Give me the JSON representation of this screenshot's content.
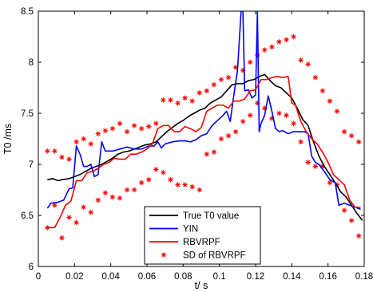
{
  "chart_data": {
    "type": "line",
    "title": "",
    "xlabel": "t/ s",
    "ylabel": "T0 /ms",
    "xlim": [
      0,
      0.18
    ],
    "ylim": [
      6,
      8.5
    ],
    "xticks": [
      "0",
      "0.02",
      "0.04",
      "0.06",
      "0.08",
      "0.1",
      "0.12",
      "0.14",
      "0.16",
      "0.18"
    ],
    "yticks": [
      "6",
      "6.5",
      "7",
      "7.5",
      "8",
      "8.5"
    ],
    "legend_position": "bottom-center",
    "series": [
      {
        "name": "True T0 value",
        "color": "#000000",
        "style": "line",
        "x": [
          0.005,
          0.008,
          0.011,
          0.013,
          0.017,
          0.02,
          0.023,
          0.026,
          0.029,
          0.032,
          0.035,
          0.038,
          0.041,
          0.044,
          0.047,
          0.05,
          0.053,
          0.056,
          0.059,
          0.062,
          0.065,
          0.068,
          0.071,
          0.074,
          0.077,
          0.08,
          0.083,
          0.086,
          0.089,
          0.092,
          0.095,
          0.098,
          0.101,
          0.104,
          0.107,
          0.11,
          0.113,
          0.116,
          0.119,
          0.122,
          0.125,
          0.128,
          0.131,
          0.134,
          0.137,
          0.14,
          0.143,
          0.146,
          0.149,
          0.152,
          0.155,
          0.158,
          0.161,
          0.164,
          0.167,
          0.17,
          0.173,
          0.176,
          0.179
        ],
        "y": [
          6.85,
          6.86,
          6.84,
          6.85,
          6.86,
          6.88,
          6.9,
          6.93,
          6.96,
          6.98,
          7.0,
          7.03,
          7.06,
          7.1,
          7.12,
          7.13,
          7.15,
          7.17,
          7.19,
          7.2,
          7.22,
          7.27,
          7.32,
          7.36,
          7.4,
          7.43,
          7.47,
          7.5,
          7.53,
          7.55,
          7.6,
          7.63,
          7.66,
          7.72,
          7.78,
          7.79,
          7.79,
          7.82,
          7.83,
          7.86,
          7.88,
          7.82,
          7.77,
          7.75,
          7.7,
          7.65,
          7.55,
          7.44,
          7.38,
          7.22,
          7.08,
          6.98,
          6.9,
          6.82,
          6.73,
          6.68,
          6.6,
          6.52,
          6.45
        ]
      },
      {
        "name": "YIN",
        "color": "#0000ff",
        "style": "line",
        "x": [
          0.005,
          0.007,
          0.011,
          0.014,
          0.017,
          0.019,
          0.021,
          0.023,
          0.025,
          0.027,
          0.029,
          0.031,
          0.033,
          0.035,
          0.037,
          0.041,
          0.045,
          0.049,
          0.053,
          0.057,
          0.061,
          0.064,
          0.066,
          0.068,
          0.07,
          0.074,
          0.078,
          0.081,
          0.084,
          0.087,
          0.09,
          0.093,
          0.096,
          0.099,
          0.102,
          0.104,
          0.106,
          0.108,
          0.11,
          0.112,
          0.113,
          0.114,
          0.116,
          0.118,
          0.12,
          0.121,
          0.122,
          0.123,
          0.125,
          0.127,
          0.129,
          0.131,
          0.133,
          0.135,
          0.138,
          0.141,
          0.144,
          0.147,
          0.149,
          0.151,
          0.153,
          0.155,
          0.158,
          0.161,
          0.164,
          0.166,
          0.169,
          0.172,
          0.175,
          0.178
        ],
        "y": [
          6.57,
          6.62,
          6.63,
          6.65,
          6.76,
          6.77,
          7.18,
          7.1,
          6.98,
          6.98,
          7.0,
          6.88,
          6.9,
          7.22,
          7.13,
          7.13,
          7.15,
          7.17,
          7.15,
          7.15,
          7.18,
          7.18,
          7.22,
          7.16,
          7.2,
          7.22,
          7.23,
          7.23,
          7.22,
          7.24,
          7.28,
          7.3,
          7.38,
          7.43,
          7.48,
          7.52,
          7.42,
          7.68,
          7.92,
          8.5,
          8.5,
          7.72,
          7.73,
          7.65,
          7.68,
          8.5,
          7.32,
          7.4,
          7.48,
          7.67,
          7.52,
          7.35,
          7.32,
          7.33,
          7.3,
          7.32,
          7.32,
          7.32,
          7.3,
          7.08,
          7.02,
          7.0,
          6.93,
          6.85,
          6.82,
          6.6,
          6.62,
          6.6,
          6.58,
          6.56
        ]
      },
      {
        "name": "RBVRPF",
        "color": "#ff0000",
        "style": "line",
        "x": [
          0.005,
          0.009,
          0.012,
          0.015,
          0.018,
          0.021,
          0.024,
          0.027,
          0.03,
          0.033,
          0.036,
          0.039,
          0.042,
          0.045,
          0.048,
          0.051,
          0.054,
          0.057,
          0.06,
          0.063,
          0.066,
          0.069,
          0.072,
          0.075,
          0.078,
          0.081,
          0.084,
          0.087,
          0.09,
          0.093,
          0.096,
          0.099,
          0.102,
          0.105,
          0.108,
          0.111,
          0.114,
          0.117,
          0.12,
          0.123,
          0.126,
          0.129,
          0.132,
          0.135,
          0.138,
          0.14,
          0.142,
          0.145,
          0.148,
          0.151,
          0.154,
          0.157,
          0.16,
          0.163,
          0.166,
          0.169,
          0.172,
          0.175,
          0.178
        ],
        "y": [
          6.38,
          6.38,
          6.48,
          6.6,
          6.64,
          6.84,
          6.84,
          6.92,
          6.93,
          6.96,
          7.0,
          7.02,
          7.06,
          7.05,
          7.05,
          7.1,
          7.1,
          7.12,
          7.15,
          7.2,
          7.35,
          7.38,
          7.38,
          7.32,
          7.32,
          7.37,
          7.35,
          7.32,
          7.36,
          7.52,
          7.55,
          7.58,
          7.58,
          7.55,
          7.62,
          7.62,
          7.64,
          7.72,
          7.73,
          7.83,
          7.83,
          7.85,
          7.86,
          7.85,
          7.86,
          7.6,
          7.58,
          7.42,
          7.32,
          7.25,
          7.2,
          7.12,
          7.02,
          6.9,
          6.85,
          6.8,
          6.65,
          6.58,
          6.58
        ]
      },
      {
        "name": "SD of RBVRPF",
        "color": "#ff0000",
        "style": "marker",
        "x": [
          0.005,
          0.009,
          0.013,
          0.017,
          0.021,
          0.025,
          0.029,
          0.033,
          0.037,
          0.041,
          0.045,
          0.049,
          0.053,
          0.057,
          0.061,
          0.065,
          0.069,
          0.073,
          0.077,
          0.081,
          0.085,
          0.089,
          0.093,
          0.097,
          0.101,
          0.105,
          0.109,
          0.113,
          0.117,
          0.121,
          0.125,
          0.129,
          0.133,
          0.137,
          0.141,
          0.145,
          0.149,
          0.153,
          0.157,
          0.161,
          0.165,
          0.169,
          0.173,
          0.177,
          0.005,
          0.009,
          0.013,
          0.017,
          0.021,
          0.025,
          0.029,
          0.033,
          0.037,
          0.041,
          0.045,
          0.049,
          0.053,
          0.057,
          0.061,
          0.065,
          0.069,
          0.073,
          0.077,
          0.081,
          0.085,
          0.089,
          0.093,
          0.097,
          0.101,
          0.105,
          0.109,
          0.113,
          0.117,
          0.121,
          0.125,
          0.129,
          0.133,
          0.137,
          0.141,
          0.145,
          0.149,
          0.153,
          0.157,
          0.161,
          0.165,
          0.169,
          0.173,
          0.177
        ],
        "y": [
          7.13,
          7.13,
          7.07,
          7.05,
          7.22,
          7.25,
          7.2,
          7.3,
          7.33,
          7.35,
          7.4,
          7.32,
          7.38,
          7.35,
          7.37,
          7.4,
          7.63,
          7.63,
          7.6,
          7.65,
          7.62,
          7.7,
          7.72,
          7.78,
          7.83,
          7.85,
          7.95,
          7.92,
          8.0,
          8.07,
          8.12,
          8.15,
          8.2,
          8.22,
          8.25,
          8.02,
          7.98,
          7.85,
          7.72,
          7.62,
          7.52,
          7.32,
          7.28,
          7.22,
          6.38,
          6.6,
          6.28,
          6.48,
          6.43,
          6.58,
          6.53,
          6.65,
          6.72,
          6.68,
          6.67,
          6.75,
          6.75,
          6.82,
          6.85,
          6.95,
          6.92,
          6.85,
          6.8,
          6.8,
          6.78,
          6.75,
          7.1,
          7.12,
          7.25,
          7.28,
          7.32,
          7.42,
          7.48,
          7.6,
          7.55,
          7.45,
          7.5,
          7.48,
          7.4,
          7.22,
          7.02,
          6.98,
          6.98,
          6.82,
          6.8,
          6.55,
          6.45,
          6.3
        ]
      }
    ]
  }
}
